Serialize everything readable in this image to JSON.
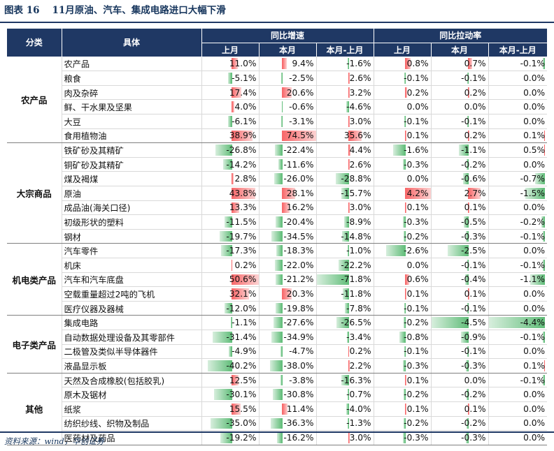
{
  "title": {
    "label": "图表 16",
    "text": "11月原油、汽车、集成电路进口大幅下滑"
  },
  "source": "资料来源：wind，华创证券",
  "header": {
    "category": "分类",
    "item": "具体",
    "group1": "同比增速",
    "group2": "同比拉动率",
    "sub": [
      "上月",
      "本月",
      "本月-上月",
      "上月",
      "本月",
      "本月-上月"
    ]
  },
  "groups": [
    {
      "category": "农产品",
      "rows": [
        {
          "name": "农产品",
          "v": [
            "11.0%",
            "9.4%",
            "-1.6%",
            "0.8%",
            "0.7%",
            "-0.1%"
          ]
        },
        {
          "name": "粮食",
          "v": [
            "-5.1%",
            "-2.5%",
            "2.6%",
            "-0.1%",
            "-0.1%",
            "0.0%"
          ]
        },
        {
          "name": "肉及杂碎",
          "v": [
            "17.4%",
            "20.6%",
            "3.2%",
            "0.2%",
            "0.2%",
            "0.0%"
          ]
        },
        {
          "name": "鲜、干水果及坚果",
          "v": [
            "4.0%",
            "-0.6%",
            "-4.6%",
            "0.0%",
            "0.0%",
            "0.0%"
          ]
        },
        {
          "name": "大豆",
          "v": [
            "-6.1%",
            "-3.1%",
            "3.0%",
            "-0.1%",
            "-0.1%",
            "0.0%"
          ]
        },
        {
          "name": "食用植物油",
          "v": [
            "38.9%",
            "74.5%",
            "35.6%",
            "0.1%",
            "0.2%",
            "0.1%"
          ]
        }
      ]
    },
    {
      "category": "大宗商品",
      "rows": [
        {
          "name": "铁矿砂及其精矿",
          "v": [
            "-26.8%",
            "-22.4%",
            "4.4%",
            "-1.6%",
            "-1.1%",
            "0.5%"
          ]
        },
        {
          "name": "铜矿砂及其精矿",
          "v": [
            "-14.2%",
            "-11.6%",
            "2.6%",
            "-0.3%",
            "-0.2%",
            "0.0%"
          ]
        },
        {
          "name": "煤及褐煤",
          "v": [
            "2.8%",
            "-26.0%",
            "-28.8%",
            "0.0%",
            "-0.6%",
            "-0.7%"
          ]
        },
        {
          "name": "原油",
          "v": [
            "43.8%",
            "28.1%",
            "-15.7%",
            "4.2%",
            "2.7%",
            "-1.5%"
          ]
        },
        {
          "name": "成品油(海关口径)",
          "v": [
            "13.3%",
            "16.2%",
            "3.0%",
            "0.1%",
            "0.1%",
            "0.0%"
          ]
        },
        {
          "name": "初级形状的塑料",
          "v": [
            "-11.5%",
            "-20.4%",
            "-8.9%",
            "-0.3%",
            "-0.5%",
            "-0.2%"
          ]
        },
        {
          "name": "钢材",
          "v": [
            "-19.7%",
            "-34.5%",
            "-14.8%",
            "-0.2%",
            "-0.3%",
            "-0.1%"
          ]
        }
      ]
    },
    {
      "category": "机电类产品",
      "rows": [
        {
          "name": "汽车零件",
          "v": [
            "-17.3%",
            "-18.3%",
            "-1.0%",
            "-2.6%",
            "-2.5%",
            "0.0%"
          ]
        },
        {
          "name": "机床",
          "v": [
            "0.2%",
            "-22.0%",
            "-22.2%",
            "0.0%",
            "-0.1%",
            "-0.1%"
          ]
        },
        {
          "name": "汽车和汽车底盘",
          "v": [
            "50.6%",
            "-21.2%",
            "-71.8%",
            "0.6%",
            "-0.4%",
            "-1.1%"
          ]
        },
        {
          "name": "空载重量超过2吨的飞机",
          "v": [
            "32.1%",
            "20.3%",
            "-11.8%",
            "0.1%",
            "0.1%",
            "0.0%"
          ]
        },
        {
          "name": "医疗仪器及器械",
          "v": [
            "-12.0%",
            "-19.8%",
            "-7.8%",
            "-0.1%",
            "-0.1%",
            "0.0%"
          ]
        }
      ]
    },
    {
      "category": "电子类产品",
      "rows": [
        {
          "name": "集成电路",
          "v": [
            "-1.1%",
            "-27.6%",
            "-26.5%",
            "-0.2%",
            "-4.5%",
            "-4.4%"
          ]
        },
        {
          "name": "自动数据处理设备及其零部件",
          "v": [
            "-31.4%",
            "-34.9%",
            "-3.4%",
            "-0.8%",
            "-0.9%",
            "-0.1%"
          ]
        },
        {
          "name": "二极管及类似半导体器件",
          "v": [
            "-4.9%",
            "-4.7%",
            "0.2%",
            "-0.1%",
            "-0.1%",
            "0.0%"
          ]
        },
        {
          "name": "液晶显示板",
          "v": [
            "-40.2%",
            "-38.0%",
            "2.2%",
            "-0.3%",
            "-0.3%",
            "0.1%"
          ]
        }
      ]
    },
    {
      "category": "其他",
      "rows": [
        {
          "name": "天然及合成橡胶(包括胶乳)",
          "v": [
            "12.5%",
            "-3.8%",
            "-16.3%",
            "0.1%",
            "0.0%",
            "-0.1%"
          ]
        },
        {
          "name": "原木及锯材",
          "v": [
            "-30.1%",
            "-30.8%",
            "-0.7%",
            "-0.2%",
            "-0.2%",
            "0.0%"
          ]
        },
        {
          "name": "纸浆",
          "v": [
            "15.5%",
            "11.4%",
            "-4.0%",
            "0.1%",
            "0.1%",
            "0.0%"
          ]
        },
        {
          "name": "纺织纱线、织物及制品",
          "v": [
            "-35.0%",
            "-36.3%",
            "-1.3%",
            "-0.2%",
            "-0.2%",
            "0.0%"
          ]
        },
        {
          "name": "医药材及药品",
          "v": [
            "-19.2%",
            "-16.2%",
            "3.0%",
            "-0.3%",
            "-0.3%",
            "0.0%"
          ]
        }
      ]
    }
  ],
  "colors": {
    "positive_bar": "#f8696b",
    "negative_bar": "#63be7b",
    "header_bg": "#1f3864"
  }
}
